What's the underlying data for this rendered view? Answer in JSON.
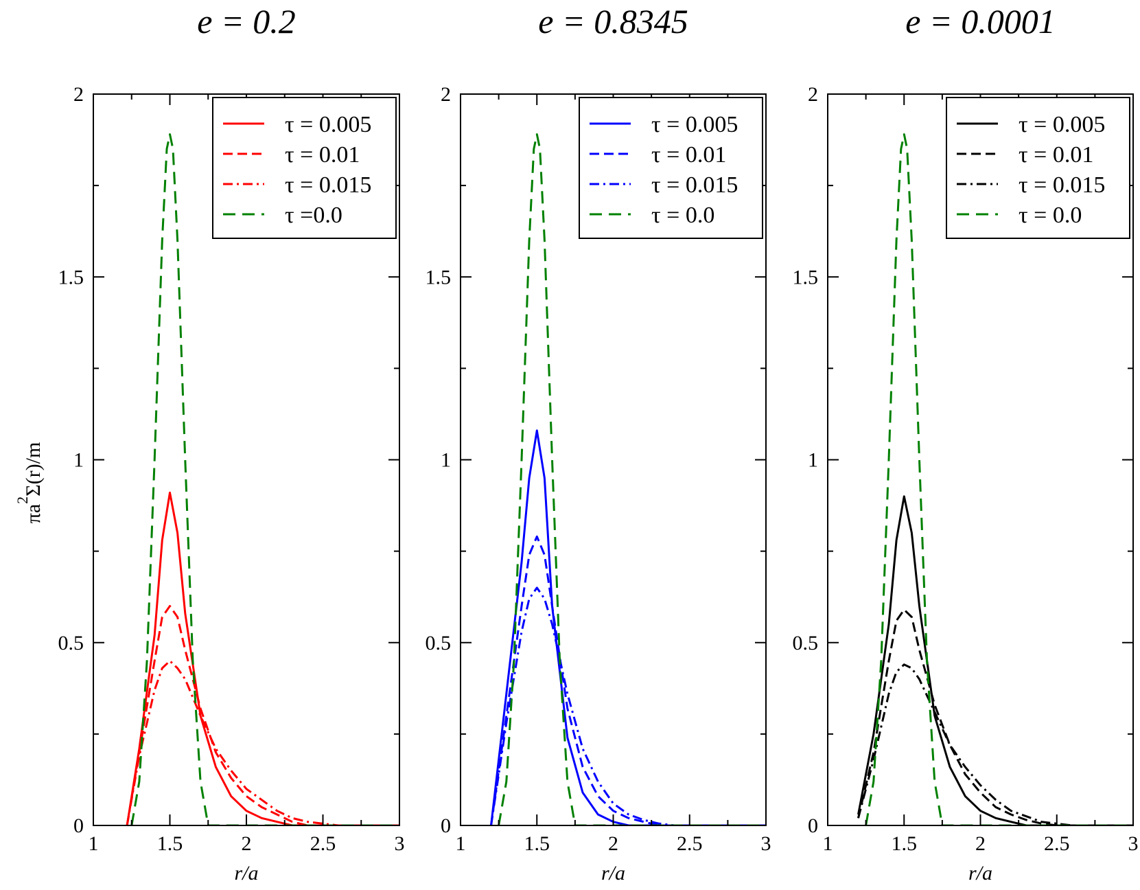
{
  "figure": {
    "ylabel_parts": [
      "πa",
      "2",
      "Σ(r)/m"
    ],
    "xlabel": "r/a"
  },
  "chart_data": [
    {
      "type": "line",
      "title": "e = 0.2",
      "xlabel": "r/a",
      "ylabel": "πa^2Σ(r)/m",
      "xlim": [
        1,
        3
      ],
      "ylim": [
        0,
        2
      ],
      "xticks": [
        "1",
        "1.5",
        "2",
        "2.5",
        "3"
      ],
      "yticks": [
        "0",
        "0.5",
        "1",
        "1.5",
        "2"
      ],
      "legend_position": "top-right",
      "legend": [
        "τ = 0.005",
        "τ = 0.01",
        "τ = 0.015",
        "τ =0.0"
      ],
      "series": [
        {
          "name": "τ = 0.005",
          "color": "#ff0000",
          "dash": "solid",
          "x": [
            1.22,
            1.3,
            1.4,
            1.45,
            1.5,
            1.55,
            1.6,
            1.7,
            1.8,
            1.9,
            2.0,
            2.1,
            2.2,
            2.3,
            2.5,
            3.0
          ],
          "y": [
            0.0,
            0.21,
            0.52,
            0.78,
            0.91,
            0.8,
            0.58,
            0.3,
            0.16,
            0.08,
            0.04,
            0.02,
            0.01,
            0.0,
            0.0,
            0.0
          ]
        },
        {
          "name": "τ = 0.01",
          "color": "#ff0000",
          "dash": "dashed",
          "x": [
            1.22,
            1.3,
            1.4,
            1.45,
            1.5,
            1.55,
            1.6,
            1.7,
            1.8,
            1.9,
            2.0,
            2.1,
            2.2,
            2.3,
            2.4,
            2.5,
            3.0
          ],
          "y": [
            0.0,
            0.2,
            0.45,
            0.57,
            0.6,
            0.57,
            0.48,
            0.32,
            0.2,
            0.13,
            0.08,
            0.05,
            0.03,
            0.01,
            0.0,
            0.0,
            0.0
          ]
        },
        {
          "name": "τ = 0.015",
          "color": "#ff0000",
          "dash": "dashdot",
          "x": [
            1.22,
            1.3,
            1.4,
            1.45,
            1.5,
            1.55,
            1.6,
            1.7,
            1.8,
            1.9,
            2.0,
            2.1,
            2.2,
            2.3,
            2.4,
            2.5,
            2.6,
            3.0
          ],
          "y": [
            0.0,
            0.19,
            0.37,
            0.43,
            0.45,
            0.43,
            0.4,
            0.3,
            0.21,
            0.15,
            0.1,
            0.07,
            0.04,
            0.02,
            0.01,
            0.005,
            0.0,
            0.0
          ]
        },
        {
          "name": "τ =0.0",
          "color": "#008000",
          "dash": "longdash",
          "x": [
            1.25,
            1.3,
            1.35,
            1.4,
            1.45,
            1.48,
            1.5,
            1.52,
            1.55,
            1.6,
            1.65,
            1.7,
            1.75,
            3.0
          ],
          "y": [
            0.0,
            0.12,
            0.45,
            1.0,
            1.6,
            1.85,
            1.89,
            1.85,
            1.6,
            1.0,
            0.45,
            0.12,
            0.0,
            0.0
          ]
        }
      ]
    },
    {
      "type": "line",
      "title": "e = 0.8345",
      "xlabel": "r/a",
      "ylabel": "",
      "xlim": [
        1,
        3
      ],
      "ylim": [
        0,
        2
      ],
      "xticks": [
        "1",
        "1.5",
        "2",
        "2.5",
        "3"
      ],
      "yticks": [
        "0",
        "0.5",
        "1",
        "1.5",
        "2"
      ],
      "legend_position": "top-right",
      "legend": [
        "τ = 0.005",
        "τ = 0.01",
        "τ = 0.015",
        "τ = 0.0"
      ],
      "series": [
        {
          "name": "τ = 0.005",
          "color": "#0000ff",
          "dash": "solid",
          "x": [
            1.2,
            1.3,
            1.4,
            1.45,
            1.5,
            1.55,
            1.6,
            1.7,
            1.8,
            1.9,
            2.0,
            2.1,
            2.2,
            3.0
          ],
          "y": [
            0.0,
            0.36,
            0.72,
            0.95,
            1.08,
            0.95,
            0.6,
            0.24,
            0.09,
            0.03,
            0.01,
            0.0,
            0.0,
            0.0
          ]
        },
        {
          "name": "τ = 0.01",
          "color": "#0000ff",
          "dash": "dashed",
          "x": [
            1.2,
            1.3,
            1.4,
            1.45,
            1.5,
            1.55,
            1.6,
            1.7,
            1.8,
            1.9,
            2.0,
            2.1,
            2.2,
            2.3,
            3.0
          ],
          "y": [
            0.0,
            0.3,
            0.6,
            0.74,
            0.79,
            0.74,
            0.6,
            0.32,
            0.16,
            0.08,
            0.04,
            0.02,
            0.01,
            0.0,
            0.0
          ]
        },
        {
          "name": "τ = 0.015",
          "color": "#0000ff",
          "dash": "dashdot",
          "x": [
            1.2,
            1.3,
            1.4,
            1.45,
            1.5,
            1.55,
            1.6,
            1.7,
            1.8,
            1.9,
            2.0,
            2.1,
            2.2,
            2.3,
            2.4,
            3.0
          ],
          "y": [
            0.0,
            0.28,
            0.53,
            0.62,
            0.65,
            0.62,
            0.55,
            0.36,
            0.21,
            0.12,
            0.06,
            0.03,
            0.015,
            0.005,
            0.0,
            0.0
          ]
        },
        {
          "name": "τ = 0.0",
          "color": "#008000",
          "dash": "longdash",
          "x": [
            1.25,
            1.3,
            1.35,
            1.4,
            1.45,
            1.48,
            1.5,
            1.52,
            1.55,
            1.6,
            1.65,
            1.7,
            1.75,
            3.0
          ],
          "y": [
            0.0,
            0.12,
            0.45,
            1.0,
            1.6,
            1.85,
            1.89,
            1.85,
            1.6,
            1.0,
            0.45,
            0.12,
            0.0,
            0.0
          ]
        }
      ]
    },
    {
      "type": "line",
      "title": "e = 0.0001",
      "xlabel": "r/a",
      "ylabel": "",
      "xlim": [
        1,
        3
      ],
      "ylim": [
        0,
        2
      ],
      "xticks": [
        "1",
        "1.5",
        "2",
        "2.5",
        "3"
      ],
      "yticks": [
        "0",
        "0.5",
        "1",
        "1.5",
        "2"
      ],
      "legend_position": "top-right",
      "legend": [
        "τ = 0.005",
        "τ = 0.01",
        "τ = 0.015",
        "τ = 0.0"
      ],
      "series": [
        {
          "name": "τ = 0.005",
          "color": "#000000",
          "dash": "solid",
          "x": [
            1.2,
            1.3,
            1.4,
            1.45,
            1.5,
            1.55,
            1.6,
            1.7,
            1.8,
            1.9,
            2.0,
            2.1,
            2.2,
            2.3,
            2.5,
            3.0
          ],
          "y": [
            0.03,
            0.25,
            0.55,
            0.78,
            0.9,
            0.8,
            0.6,
            0.3,
            0.16,
            0.08,
            0.04,
            0.02,
            0.01,
            0.0,
            0.0,
            0.0
          ]
        },
        {
          "name": "τ = 0.01",
          "color": "#000000",
          "dash": "dashed",
          "x": [
            1.2,
            1.3,
            1.4,
            1.45,
            1.5,
            1.55,
            1.6,
            1.7,
            1.8,
            1.9,
            2.0,
            2.1,
            2.2,
            2.3,
            2.4,
            2.5,
            3.0
          ],
          "y": [
            0.02,
            0.2,
            0.45,
            0.56,
            0.59,
            0.57,
            0.48,
            0.33,
            0.22,
            0.14,
            0.09,
            0.05,
            0.03,
            0.015,
            0.005,
            0.0,
            0.0
          ]
        },
        {
          "name": "τ = 0.015",
          "color": "#000000",
          "dash": "dashdot",
          "x": [
            1.2,
            1.3,
            1.4,
            1.45,
            1.5,
            1.55,
            1.6,
            1.7,
            1.8,
            1.9,
            2.0,
            2.1,
            2.2,
            2.3,
            2.4,
            2.5,
            2.6,
            3.0
          ],
          "y": [
            0.02,
            0.18,
            0.36,
            0.42,
            0.44,
            0.43,
            0.4,
            0.31,
            0.22,
            0.16,
            0.11,
            0.07,
            0.04,
            0.025,
            0.01,
            0.005,
            0.0,
            0.0
          ]
        },
        {
          "name": "τ = 0.0",
          "color": "#008000",
          "dash": "longdash",
          "x": [
            1.25,
            1.3,
            1.35,
            1.4,
            1.45,
            1.48,
            1.5,
            1.52,
            1.55,
            1.6,
            1.65,
            1.7,
            1.75,
            3.0
          ],
          "y": [
            0.0,
            0.12,
            0.45,
            1.0,
            1.6,
            1.85,
            1.89,
            1.85,
            1.6,
            1.0,
            0.45,
            0.12,
            0.0,
            0.0
          ]
        }
      ]
    }
  ]
}
